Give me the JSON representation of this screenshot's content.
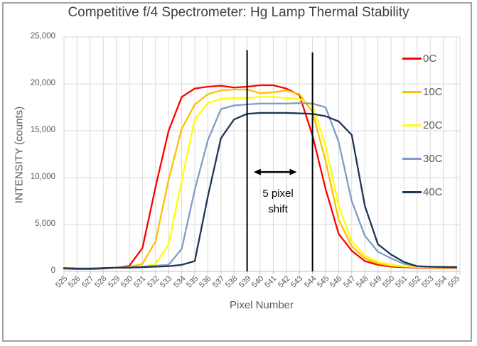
{
  "chart_data": {
    "type": "line",
    "title": "Competitive f/4 Spectrometer: Hg Lamp Thermal Stability",
    "xlabel": "Pixel Number",
    "ylabel": "INTENSITY (counts)",
    "x": [
      525,
      526,
      527,
      528,
      529,
      530,
      531,
      532,
      533,
      534,
      535,
      536,
      537,
      538,
      539,
      540,
      541,
      542,
      543,
      544,
      545,
      546,
      547,
      548,
      549,
      550,
      551,
      552,
      553,
      554,
      555
    ],
    "ylim": [
      0,
      25000
    ],
    "yticks": [
      {
        "value": 0,
        "label": "0"
      },
      {
        "value": 5000,
        "label": "5,000"
      },
      {
        "value": 10000,
        "label": "10,000"
      },
      {
        "value": 15000,
        "label": "15,000"
      },
      {
        "value": 20000,
        "label": "20,000"
      },
      {
        "value": 25000,
        "label": "25,000"
      }
    ],
    "grid": true,
    "legend_position": "right",
    "series": [
      {
        "name": "0C",
        "color": "#ff0000",
        "values": [
          300,
          250,
          250,
          300,
          400,
          600,
          2500,
          9000,
          15000,
          18600,
          19500,
          19700,
          19800,
          19600,
          19700,
          19850,
          19850,
          19500,
          18800,
          14500,
          8800,
          4000,
          2200,
          1100,
          700,
          500,
          450,
          400,
          380,
          350,
          350
        ]
      },
      {
        "name": "10C",
        "color": "#ffc000",
        "values": [
          350,
          300,
          300,
          350,
          400,
          500,
          800,
          3200,
          9800,
          15200,
          17800,
          18900,
          19300,
          19400,
          19400,
          19000,
          19100,
          19300,
          18900,
          17000,
          11800,
          5500,
          2700,
          1400,
          850,
          600,
          500,
          450,
          420,
          400,
          400
        ]
      },
      {
        "name": "20C",
        "color": "#ffff00",
        "values": [
          400,
          350,
          300,
          350,
          400,
          450,
          500,
          800,
          2900,
          9700,
          16200,
          17950,
          18400,
          18500,
          18500,
          18600,
          18600,
          18500,
          18400,
          17700,
          13400,
          7000,
          3200,
          1700,
          1000,
          700,
          550,
          500,
          450,
          430,
          420
        ]
      },
      {
        "name": "30C",
        "color": "#7f9cc6",
        "values": [
          350,
          300,
          300,
          350,
          400,
          450,
          500,
          600,
          700,
          2400,
          8700,
          14000,
          17300,
          17700,
          17800,
          17900,
          17900,
          17900,
          17950,
          17900,
          17500,
          13800,
          7500,
          3800,
          2100,
          1400,
          800,
          550,
          480,
          450,
          430
        ]
      },
      {
        "name": "40C",
        "color": "#1f3556",
        "values": [
          350,
          300,
          300,
          350,
          400,
          400,
          450,
          500,
          550,
          700,
          1100,
          8000,
          14200,
          16200,
          16800,
          16900,
          16900,
          16900,
          16850,
          16800,
          16550,
          16000,
          14550,
          7000,
          2900,
          1800,
          1000,
          550,
          500,
          480,
          460
        ]
      }
    ],
    "marker_lines": [
      {
        "x": 539,
        "top_value": 23600
      },
      {
        "x": 544,
        "top_value": 23350
      }
    ],
    "annotation": {
      "lines": [
        "5 pixel",
        "shift"
      ],
      "arrow_y_value": 10600,
      "arrow_from_x": 539.5,
      "arrow_to_x": 542.8
    }
  },
  "styles": {
    "grid_color": "#d9d9d9",
    "axis_color": "#bfbfbf",
    "tick_label_color": "#595959",
    "title_color": "#404040",
    "annotation_color": "#000000",
    "frame_color": "#a3a3a3"
  }
}
